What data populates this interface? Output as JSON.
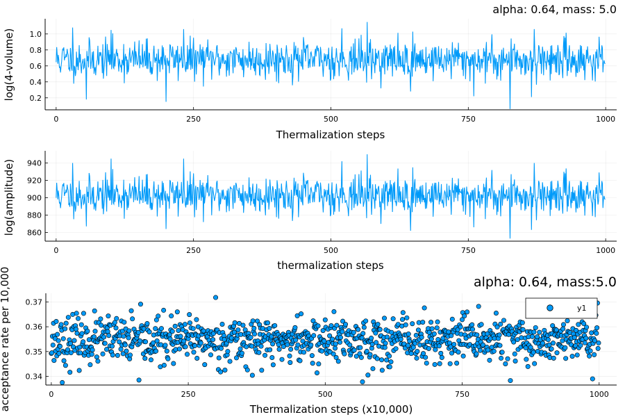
{
  "colors": {
    "series": "#009af9",
    "axis": "#000000"
  },
  "chart_data": [
    {
      "type": "line",
      "title": "alpha: 0.64, mass: 5.0",
      "xlabel": "Thermalization steps",
      "ylabel": "log(4-volume)",
      "xlim": [
        -20,
        1020
      ],
      "ylim": [
        0.05,
        1.19
      ],
      "xticks": [
        0,
        250,
        500,
        750,
        1000
      ],
      "xtick_labels": [
        "0",
        "250",
        "500",
        "750",
        "1000"
      ],
      "yticks": [
        0.2,
        0.4,
        0.6,
        0.8,
        1.0
      ],
      "ytick_labels": [
        "0.2",
        "0.4",
        "0.6",
        "0.8",
        "1.0"
      ],
      "grid": true,
      "series": [
        {
          "name": "y1",
          "n": 1000,
          "mean": 0.68,
          "amplitude": 0.24,
          "min": 0.05,
          "max": 1.16,
          "seed": 11,
          "notable": [
            [
              30,
              1.08
            ],
            [
              55,
              0.18
            ],
            [
              100,
              1.05
            ],
            [
              200,
              0.15
            ],
            [
              232,
              1.06
            ],
            [
              520,
              1.07
            ],
            [
              566,
              1.15
            ],
            [
              645,
              0.28
            ],
            [
              760,
              0.22
            ],
            [
              826,
              0.06
            ],
            [
              865,
              0.21
            ],
            [
              870,
              1.06
            ],
            [
              980,
              0.58
            ]
          ]
        }
      ]
    },
    {
      "type": "line",
      "title": "",
      "xlabel": "thermalization steps",
      "ylabel": "log(amplitude)",
      "xlim": [
        -20,
        1020
      ],
      "ylim": [
        850,
        954
      ],
      "xticks": [
        0,
        250,
        500,
        750,
        1000
      ],
      "xtick_labels": [
        "0",
        "250",
        "500",
        "750",
        "1000"
      ],
      "yticks": [
        860,
        880,
        900,
        920,
        940
      ],
      "ytick_labels": [
        "860",
        "880",
        "900",
        "920",
        "940"
      ],
      "grid": true,
      "series": [
        {
          "name": "y1",
          "n": 1000,
          "mean": 903,
          "amplitude": 22,
          "min": 853,
          "max": 950,
          "seed": 11,
          "notable": [
            [
              30,
              940
            ],
            [
              55,
              867
            ],
            [
              100,
              945
            ],
            [
              200,
              864
            ],
            [
              232,
              945
            ],
            [
              520,
              942
            ],
            [
              566,
              950
            ],
            [
              645,
              862
            ],
            [
              760,
              866
            ],
            [
              826,
              853
            ],
            [
              865,
              863
            ],
            [
              870,
              940
            ],
            [
              980,
              898
            ]
          ]
        }
      ]
    },
    {
      "type": "scatter",
      "title": "alpha: 0.64, mass:5.0",
      "xlabel": "Thermalization steps (x10,000)",
      "ylabel": "acceptance rate per 10,000",
      "xlim": [
        -10,
        1032
      ],
      "ylim": [
        0.3365,
        0.3735
      ],
      "xticks": [
        0,
        250,
        500,
        750,
        1000
      ],
      "xtick_labels": [
        "0",
        "250",
        "500",
        "750",
        "1000"
      ],
      "yticks": [
        0.34,
        0.35,
        0.36,
        0.37
      ],
      "ytick_labels": [
        "0.34",
        "0.35",
        "0.36",
        "0.37"
      ],
      "grid": true,
      "legend": {
        "position": "top-right",
        "entries": [
          "y1"
        ]
      },
      "series": [
        {
          "name": "y1",
          "n": 1000,
          "mean": 0.3545,
          "amplitude": 0.0095,
          "min": 0.3372,
          "max": 0.3718,
          "seed": 23,
          "notable": [
            [
              20,
              0.3375
            ],
            [
              160,
              0.3385
            ],
            [
              300,
              0.3718
            ],
            [
              568,
              0.3378
            ],
            [
              838,
              0.3383
            ],
            [
              988,
              0.339
            ],
            [
              780,
              0.3682
            ]
          ]
        }
      ]
    }
  ]
}
